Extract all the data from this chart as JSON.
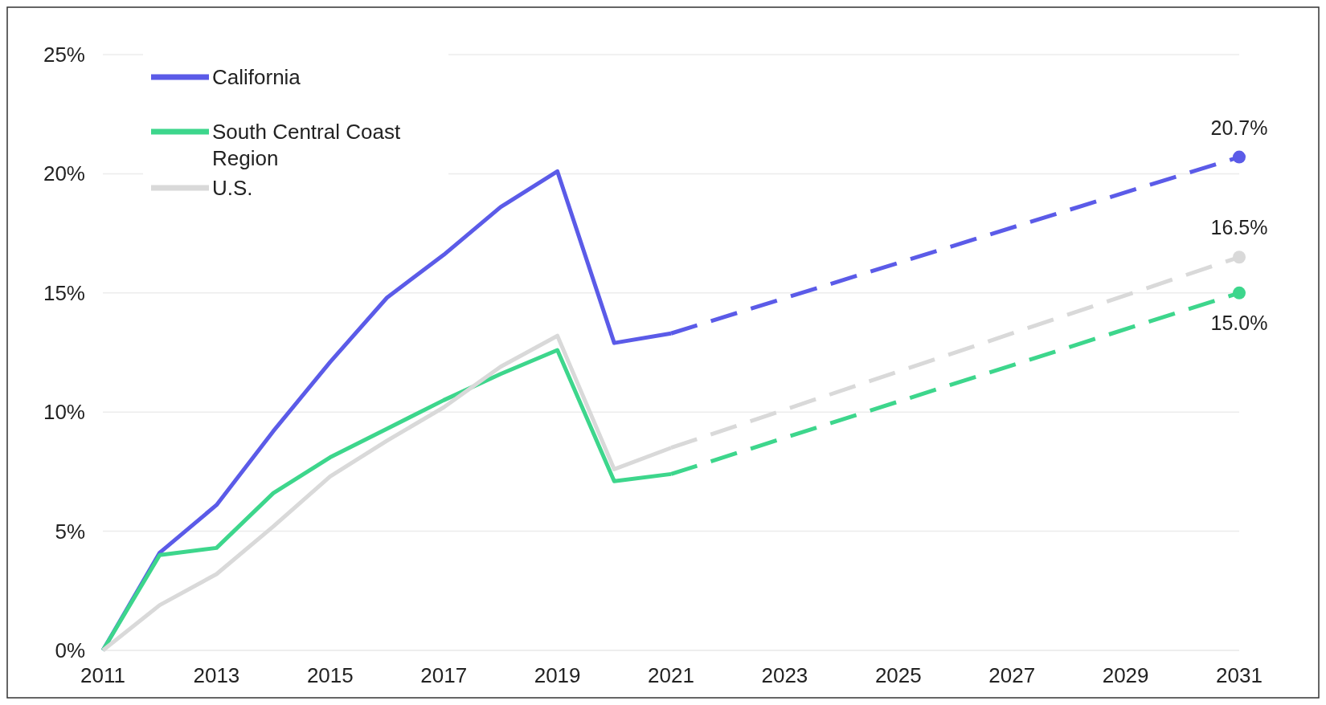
{
  "chart_data": {
    "type": "line",
    "x": [
      2011,
      2012,
      2013,
      2014,
      2015,
      2016,
      2017,
      2018,
      2019,
      2020,
      2021,
      2031
    ],
    "series": [
      {
        "name": "California",
        "color": "#5b5be8",
        "values": [
          0,
          4.1,
          6.1,
          9.2,
          12.1,
          14.8,
          16.6,
          18.6,
          20.1,
          12.9,
          13.3,
          null
        ]
      },
      {
        "name": "South Central Coast Region",
        "color": "#3dd68c",
        "values": [
          0,
          4.0,
          4.3,
          6.6,
          8.1,
          9.3,
          10.5,
          11.6,
          12.6,
          7.1,
          7.4,
          null
        ]
      },
      {
        "name": "U.S.",
        "color": "#d9d9d9",
        "values": [
          0,
          1.9,
          3.2,
          5.2,
          7.3,
          8.8,
          10.2,
          11.9,
          13.2,
          7.6,
          8.5,
          null
        ]
      },
      {
        "color": "#d9d9d9",
        "values": [
          null,
          null,
          null,
          null,
          null,
          null,
          null,
          null,
          null,
          null,
          8.5,
          16.5
        ],
        "line_style": "dashed",
        "value_labels": [
          null,
          null,
          null,
          null,
          null,
          null,
          null,
          null,
          null,
          null,
          null,
          "16.5%"
        ],
        "marker": "circle"
      },
      {
        "color": "#5b5be8",
        "values": [
          null,
          null,
          null,
          null,
          null,
          null,
          null,
          null,
          null,
          null,
          13.3,
          20.7
        ],
        "line_style": "dashed",
        "value_labels": [
          null,
          null,
          null,
          null,
          null,
          null,
          null,
          null,
          null,
          null,
          null,
          "20.7%"
        ],
        "marker": "circle"
      },
      {
        "color": "#3dd68c",
        "values": [
          null,
          null,
          null,
          null,
          null,
          null,
          null,
          null,
          null,
          null,
          7.4,
          15.0
        ],
        "line_style": "dashed",
        "value_labels": [
          null,
          null,
          null,
          null,
          null,
          null,
          null,
          null,
          null,
          null,
          null,
          "15.0%"
        ],
        "marker": "circle"
      }
    ],
    "xlim": [
      2011,
      2031
    ],
    "xticks": [
      2011,
      2013,
      2015,
      2017,
      2019,
      2021,
      2023,
      2025,
      2027,
      2029,
      2031
    ],
    "ylim": [
      0,
      25
    ],
    "yticks": [
      {
        "value": 0,
        "label": "0%"
      },
      {
        "value": 5,
        "label": "5%"
      },
      {
        "value": 10,
        "label": "10%"
      },
      {
        "value": 15,
        "label": "15%"
      },
      {
        "value": 20,
        "label": "20%"
      },
      {
        "value": 25,
        "label": "25%"
      }
    ],
    "grid": "y",
    "legend": "top left",
    "line_style": "solid"
  }
}
